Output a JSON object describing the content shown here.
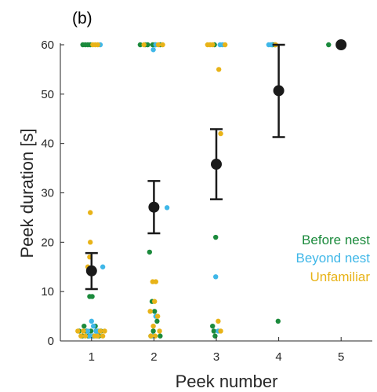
{
  "colors": {
    "axis": "#262626",
    "mean": "#1a1a1a"
  },
  "chart_data": {
    "type": "scatter",
    "panel_label": "(b)",
    "xlabel": "Peek number",
    "ylabel": "Peek duration [s]",
    "xlim": [
      0.5,
      5.5
    ],
    "ylim": [
      0,
      60
    ],
    "xticks": [
      "1",
      "2",
      "3",
      "4",
      "5"
    ],
    "yticks": [
      "0",
      "10",
      "20",
      "30",
      "40",
      "50",
      "60"
    ],
    "grid": false,
    "legend_position": "right, lower half",
    "series": [
      {
        "name": "Before nest",
        "color": "#1b8a3c",
        "points": [
          [
            0.86,
            60
          ],
          [
            0.9,
            60
          ],
          [
            0.94,
            60
          ],
          [
            0.98,
            60
          ],
          [
            0.8,
            2
          ],
          [
            0.85,
            1
          ],
          [
            0.88,
            3
          ],
          [
            0.92,
            2
          ],
          [
            0.95,
            1
          ],
          [
            0.99,
            2
          ],
          [
            1.03,
            1
          ],
          [
            1.06,
            3
          ],
          [
            1.09,
            2
          ],
          [
            1.12,
            1
          ],
          [
            1.15,
            2
          ],
          [
            0.97,
            9
          ],
          [
            1.01,
            9
          ],
          [
            1.78,
            60
          ],
          [
            1.86,
            60
          ],
          [
            1.9,
            60
          ],
          [
            1.98,
            60
          ],
          [
            2.02,
            60
          ],
          [
            2.1,
            60
          ],
          [
            1.93,
            18
          ],
          [
            1.97,
            8
          ],
          [
            2.01,
            6
          ],
          [
            2.05,
            4
          ],
          [
            1.99,
            2
          ],
          [
            1.95,
            1
          ],
          [
            2.1,
            1
          ],
          [
            2.97,
            60
          ],
          [
            2.99,
            21
          ],
          [
            2.94,
            3
          ],
          [
            2.96,
            2
          ],
          [
            2.98,
            1
          ],
          [
            3.9,
            60
          ],
          [
            3.94,
            60
          ],
          [
            3.99,
            4
          ],
          [
            4.8,
            60
          ]
        ]
      },
      {
        "name": "Beyond nest",
        "color": "#3fb7e8",
        "points": [
          [
            1.14,
            60
          ],
          [
            1.0,
            4
          ],
          [
            1.03,
            3
          ],
          [
            1.07,
            2
          ],
          [
            0.94,
            2
          ],
          [
            1.11,
            2
          ],
          [
            1.02,
            1
          ],
          [
            0.97,
            1
          ],
          [
            1.08,
            1
          ],
          [
            1.18,
            15
          ],
          [
            1.99,
            59
          ],
          [
            2.03,
            60
          ],
          [
            2.21,
            27
          ],
          [
            2.03,
            5
          ],
          [
            1.98,
            1
          ],
          [
            3.06,
            60
          ],
          [
            3.1,
            60
          ],
          [
            2.99,
            13
          ],
          [
            3.03,
            2
          ],
          [
            3.84,
            60
          ],
          [
            3.88,
            60
          ]
        ]
      },
      {
        "name": "Unfamiliar",
        "color": "#e8b318",
        "points": [
          [
            1.02,
            60
          ],
          [
            1.06,
            60
          ],
          [
            1.1,
            60
          ],
          [
            0.98,
            26
          ],
          [
            0.98,
            20
          ],
          [
            0.97,
            17
          ],
          [
            0.94,
            15
          ],
          [
            0.78,
            2
          ],
          [
            0.83,
            1
          ],
          [
            0.87,
            2
          ],
          [
            0.9,
            1
          ],
          [
            1.05,
            1
          ],
          [
            1.1,
            1
          ],
          [
            1.14,
            2
          ],
          [
            1.18,
            1
          ],
          [
            1.21,
            2
          ],
          [
            1.84,
            60
          ],
          [
            2.07,
            60
          ],
          [
            2.14,
            60
          ],
          [
            1.98,
            12
          ],
          [
            2.03,
            12
          ],
          [
            2.01,
            8
          ],
          [
            1.94,
            6
          ],
          [
            2.06,
            5
          ],
          [
            1.99,
            3
          ],
          [
            2.09,
            2
          ],
          [
            1.95,
            1
          ],
          [
            2.02,
            1
          ],
          [
            2.86,
            60
          ],
          [
            2.9,
            60
          ],
          [
            2.94,
            60
          ],
          [
            3.14,
            60
          ],
          [
            3.04,
            55
          ],
          [
            3.07,
            42
          ],
          [
            3.03,
            4
          ],
          [
            3.07,
            2
          ],
          [
            3.95,
            60
          ]
        ]
      }
    ],
    "mean_points": [
      {
        "x": 1,
        "y": 14.2,
        "lo": 10.5,
        "hi": 17.8
      },
      {
        "x": 2,
        "y": 27.1,
        "lo": 21.8,
        "hi": 32.4
      },
      {
        "x": 3,
        "y": 35.8,
        "lo": 28.7,
        "hi": 42.9
      },
      {
        "x": 4,
        "y": 50.7,
        "lo": 41.3,
        "hi": 60.0
      },
      {
        "x": 5,
        "y": 60.0,
        "lo": 60.0,
        "hi": 60.0
      }
    ]
  }
}
